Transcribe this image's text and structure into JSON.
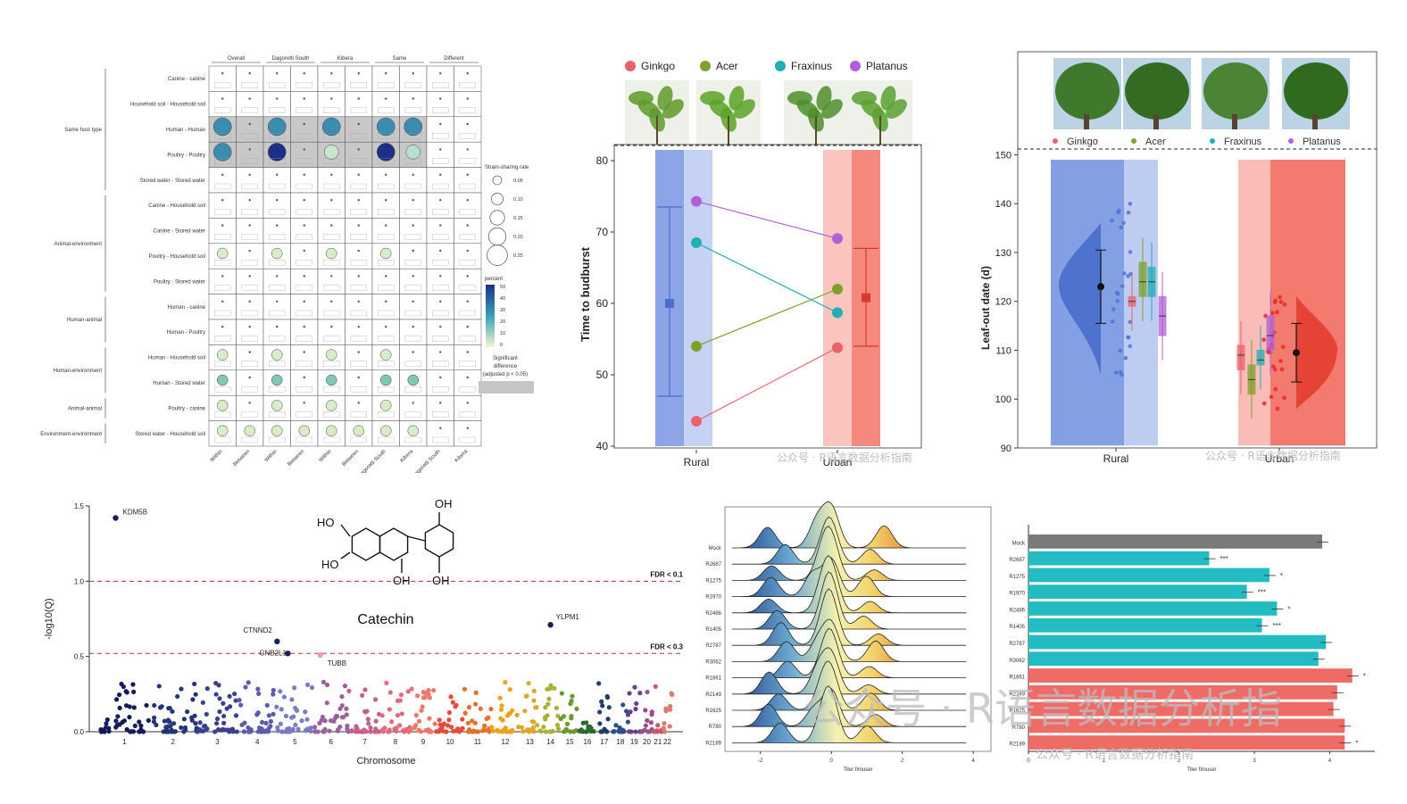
{
  "colors": {
    "ginkgo": "#e8636a",
    "acer": "#7fa12a",
    "fraxinus": "#22aeb3",
    "platanus": "#b05fd9",
    "rural": "#6f8fe0",
    "urban": "#f26b5e",
    "gray_bar": "#7a7a7a",
    "teal_bar": "#22bcc2",
    "red_bar": "#ef6b66"
  },
  "chart_data": [
    {
      "type": "heatmap",
      "panel": "strain-sharing",
      "column_groups": [
        "Overall",
        "Dagoretti South",
        "Kibera",
        "Same",
        "Different"
      ],
      "columns": [
        "Within",
        "Between",
        "Within",
        "Between",
        "Within",
        "Between",
        "Dagoretti South",
        "Kibera",
        "Dagoretti South",
        "Kibera"
      ],
      "row_groups": [
        {
          "label": "Same host type",
          "rows": [
            "Canine - canine",
            "Household soil - Household soil",
            "Human - Human",
            "Poultry - Poultry",
            "Stored water - Stored water"
          ]
        },
        {
          "label": "Animal-environment",
          "rows": [
            "Canine - Household soil",
            "Canine - Stored water",
            "Poultry - Household soil",
            "Poultry - Stored water"
          ]
        },
        {
          "label": "Human-animal",
          "rows": [
            "Human - canine",
            "Human - Poultry"
          ]
        },
        {
          "label": "Human-environment",
          "rows": [
            "Human - Household soil",
            "Human - Stored water"
          ]
        },
        {
          "label": "Animal-animal",
          "rows": [
            "Poultry - canine"
          ]
        },
        {
          "label": "Environment-environment",
          "rows": [
            "Stored water - Household soil"
          ]
        }
      ],
      "legend_size_title": "Strain-sharing rate",
      "legend_size_values": [
        "0.05",
        "0.10",
        "0.15",
        "0.20",
        "0.25"
      ],
      "legend_color_title": "percent",
      "legend_color_ticks": [
        "50",
        "40",
        "30",
        "20",
        "10",
        "0"
      ],
      "legend_sig_title": "Significant difference (adjusted p < 0.05)"
    },
    {
      "type": "scatter",
      "panel": "budburst",
      "legend": [
        "Ginkgo",
        "Acer",
        "Fraxinus",
        "Platanus"
      ],
      "categories": [
        "Rural",
        "Urban"
      ],
      "ylabel": "Time to budburst",
      "ylim": [
        40,
        82
      ],
      "yticks": [
        40,
        50,
        60,
        70,
        80
      ],
      "series": [
        {
          "name": "Ginkgo",
          "values": [
            43.5,
            53.8
          ]
        },
        {
          "name": "Acer",
          "values": [
            54,
            62
          ]
        },
        {
          "name": "Fraxinus",
          "values": [
            68.5,
            58.7
          ]
        },
        {
          "name": "Platanus",
          "values": [
            74.3,
            69.1
          ]
        }
      ],
      "group_means": [
        {
          "mean": 60,
          "low": 47,
          "high": 73.5
        },
        {
          "mean": 60.8,
          "low": 54,
          "high": 67.7
        }
      ]
    },
    {
      "type": "scatter",
      "panel": "leaf-out",
      "legend": [
        "Ginkgo",
        "Acer",
        "Fraxinus",
        "Platanus"
      ],
      "categories": [
        "Rural",
        "Urban"
      ],
      "ylabel": "Leaf-out date (d)",
      "ylim": [
        90,
        151
      ],
      "yticks": [
        90,
        100,
        110,
        120,
        130,
        140,
        150
      ],
      "group_means": [
        {
          "mean": 123,
          "low": 115.5,
          "high": 130.5
        },
        {
          "mean": 109.5,
          "low": 103.5,
          "high": 115.5
        }
      ],
      "boxes": [
        {
          "category": "Rural",
          "species": "Ginkgo",
          "q1": 119,
          "median": 120,
          "q3": 121
        },
        {
          "category": "Rural",
          "species": "Acer",
          "q1": 121,
          "median": 124,
          "q3": 128
        },
        {
          "category": "Rural",
          "species": "Fraxinus",
          "q1": 121,
          "median": 124,
          "q3": 127
        },
        {
          "category": "Rural",
          "species": "Platanus",
          "q1": 113,
          "median": 117,
          "q3": 121
        },
        {
          "category": "Urban",
          "species": "Ginkgo",
          "q1": 106,
          "median": 109,
          "q3": 111
        },
        {
          "category": "Urban",
          "species": "Acer",
          "q1": 101,
          "median": 104,
          "q3": 107
        },
        {
          "category": "Urban",
          "species": "Fraxinus",
          "q1": 107,
          "median": 108,
          "q3": 110
        },
        {
          "category": "Urban",
          "species": "Platanus",
          "q1": 110,
          "median": 113,
          "q3": 117
        }
      ]
    },
    {
      "type": "scatter",
      "panel": "manhattan",
      "title": "Catechin",
      "xlabel": "Chromosome",
      "ylabel": "-log10(Q)",
      "ylim": [
        0,
        1.5
      ],
      "yticks": [
        "0.0",
        "0.5",
        "1.0",
        "1.5"
      ],
      "chromosomes": [
        "1",
        "2",
        "3",
        "4",
        "5",
        "6",
        "7",
        "8",
        "9",
        "10",
        "11",
        "12",
        "13",
        "14",
        "15",
        "16",
        "17",
        "18",
        "19",
        "20",
        "21",
        "22"
      ],
      "thresholds": [
        {
          "label": "FDR < 0.1",
          "y": 1.0
        },
        {
          "label": "FDR < 0.3",
          "y": 0.52
        }
      ],
      "labeled_points": [
        {
          "gene": "KDM5B",
          "chromosome": "1",
          "y": 1.42
        },
        {
          "gene": "YLPM1",
          "chromosome": "14",
          "y": 0.71
        },
        {
          "gene": "CTNND2",
          "chromosome": "5",
          "y": 0.6
        },
        {
          "gene": "GNB2L1",
          "chromosome": "5",
          "y": 0.52
        },
        {
          "gene": "TUBB",
          "chromosome": "6",
          "y": 0.51
        }
      ],
      "structure_labels": [
        "HO",
        "HO",
        "OH",
        "OH",
        "OH"
      ]
    },
    {
      "type": "area",
      "panel": "ridgeline",
      "xlabel": "Titer fimuser",
      "xticks": [
        "-2",
        "0",
        "2",
        "4"
      ],
      "categories": [
        "Mock",
        "R2687",
        "R1275",
        "R1970",
        "R2486",
        "R1405",
        "R2787",
        "R3062",
        "R1861",
        "R2149",
        "R1625",
        "R780",
        "R2189"
      ]
    },
    {
      "type": "bar",
      "panel": "titer-bars",
      "xlabel": "Titer fimuser",
      "xticks": [
        "0",
        "1",
        "2",
        "3",
        "4"
      ],
      "categories": [
        "Mock",
        "R2687",
        "R1275",
        "R1970",
        "R2486",
        "R1405",
        "R2787",
        "R3062",
        "R1861",
        "R2149",
        "R1625",
        "R780",
        "R2189"
      ],
      "values": [
        3.9,
        2.4,
        3.2,
        2.9,
        3.3,
        3.1,
        3.95,
        3.85,
        4.3,
        4.1,
        4.05,
        4.2,
        4.2
      ],
      "significance": [
        "",
        "***",
        "*",
        "***",
        "*",
        "***",
        "",
        "",
        "*",
        "",
        "",
        "",
        "*"
      ]
    }
  ],
  "watermarks": {
    "small": "公众号 · R语言数据分析指南",
    "large": "公众号 · R语言数据分析指"
  }
}
